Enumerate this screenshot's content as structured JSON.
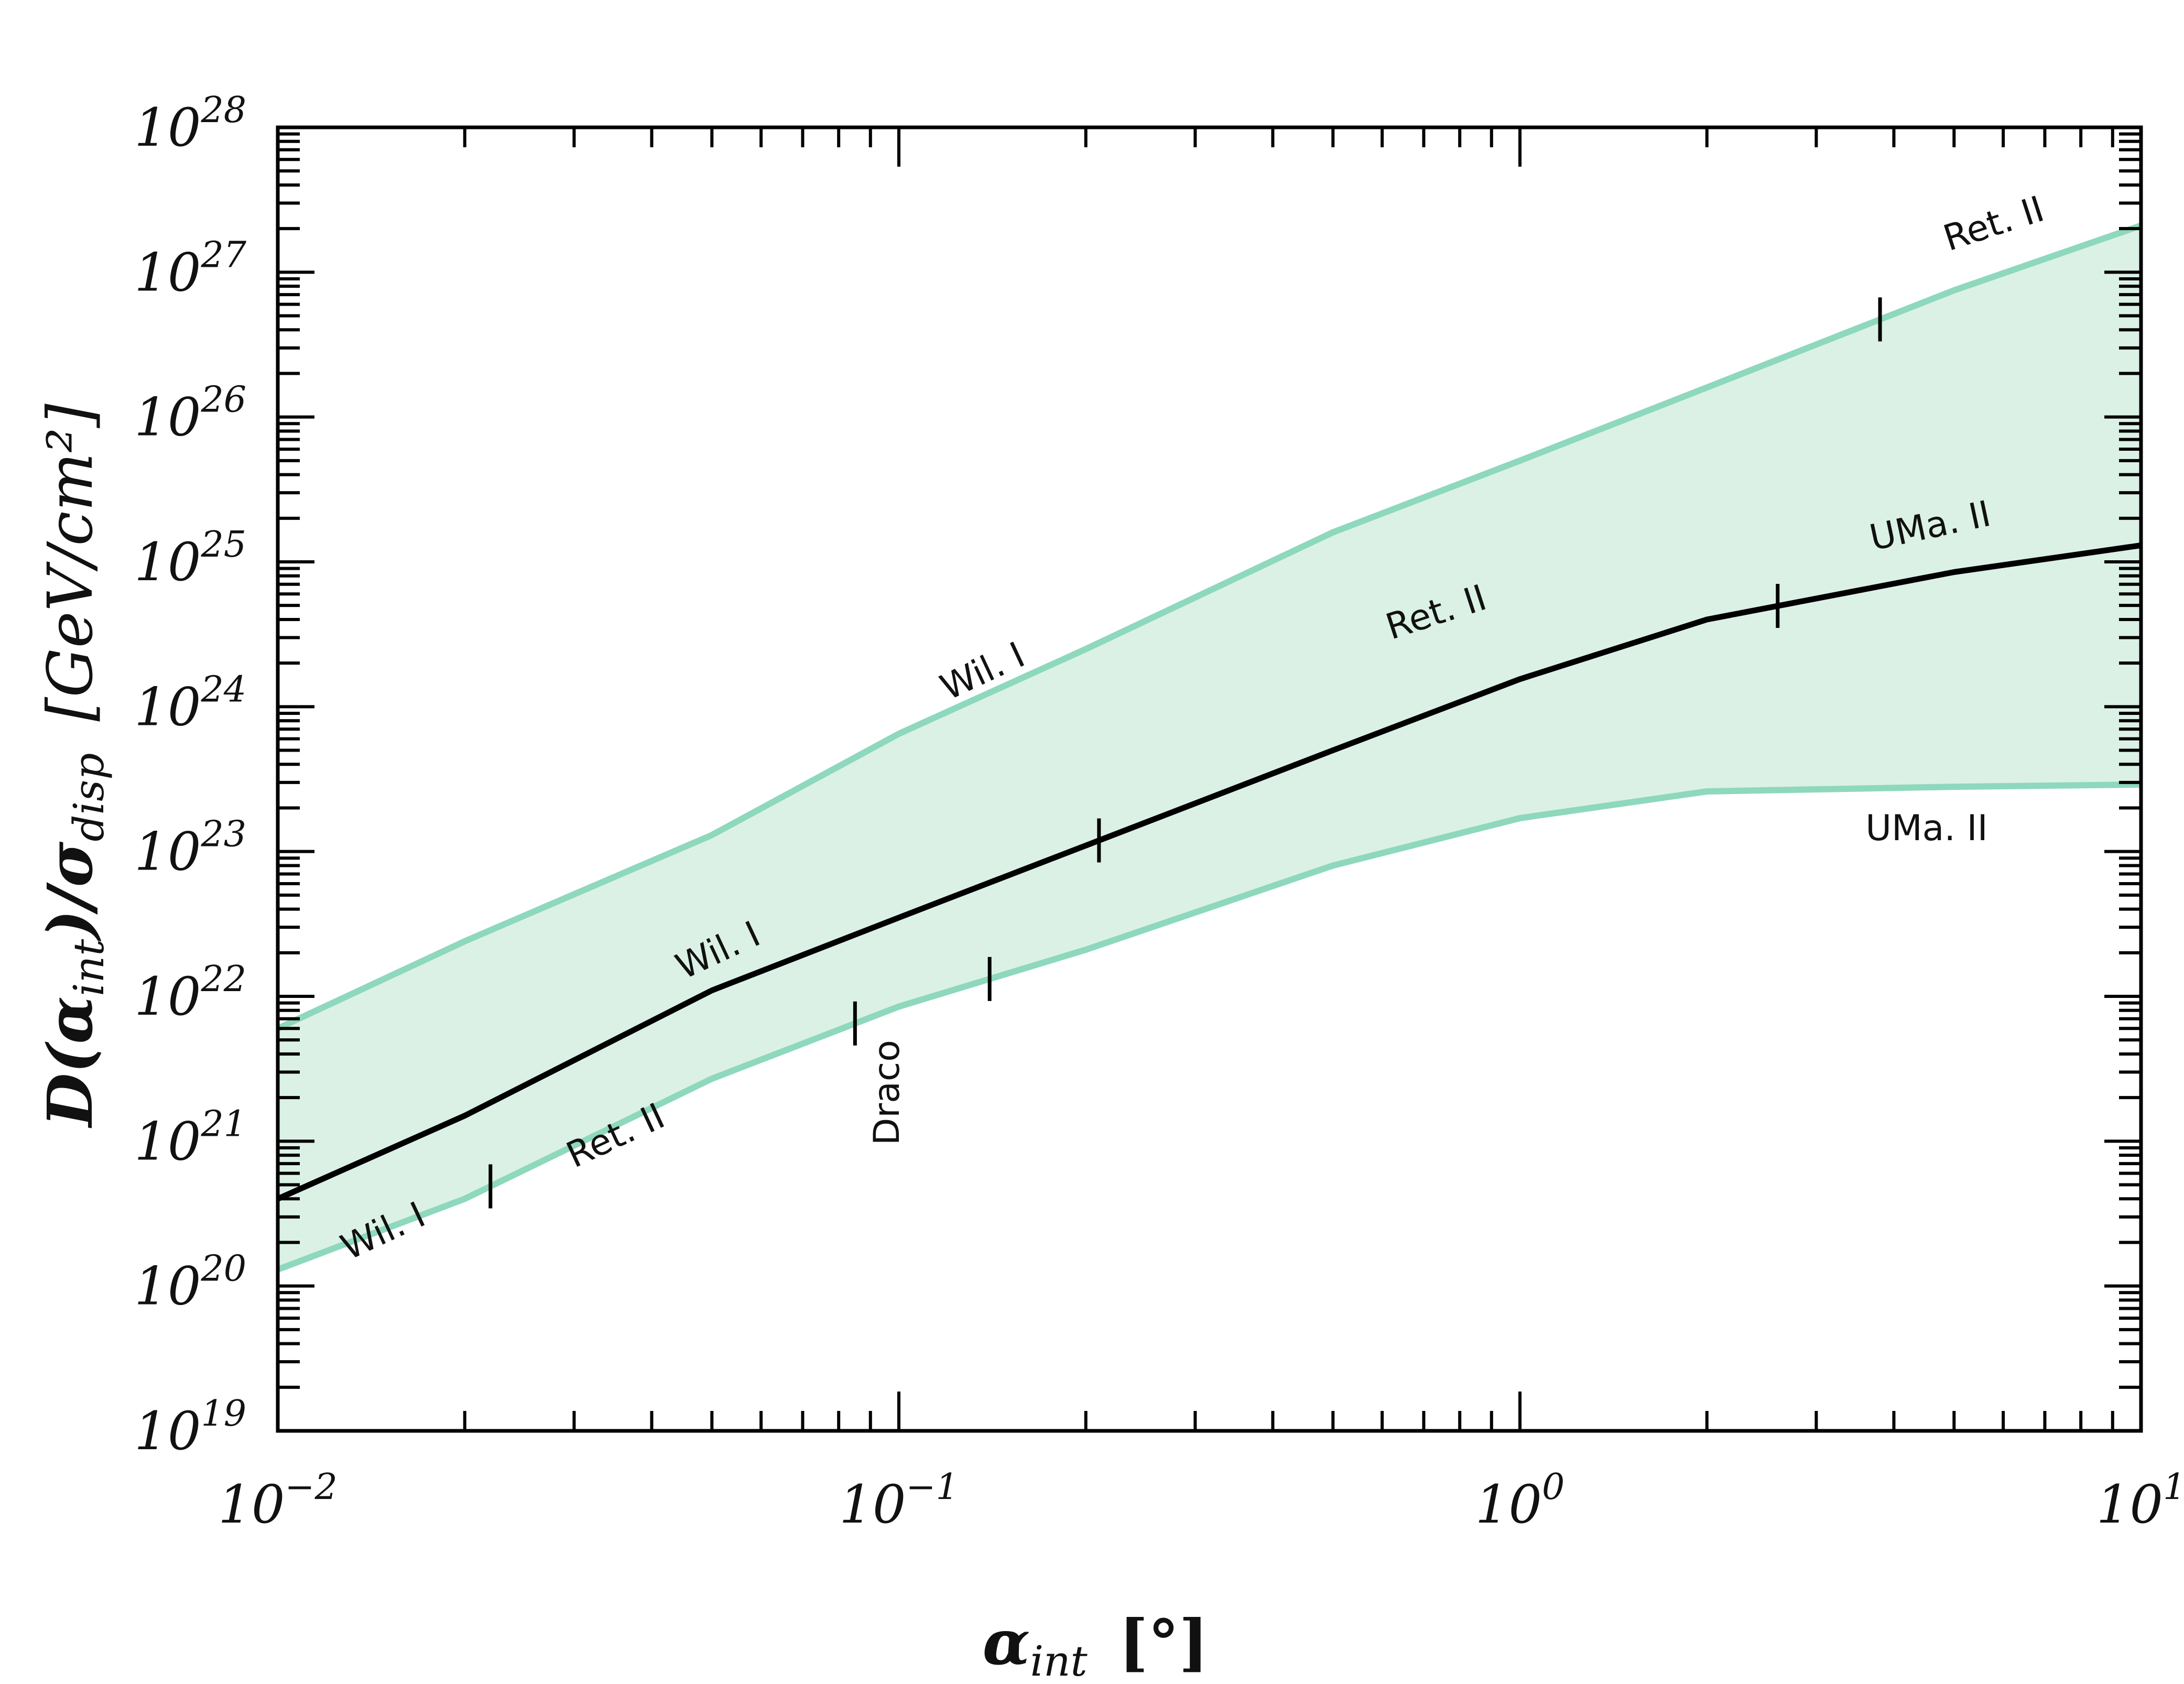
{
  "chart_data": {
    "type": "area",
    "x_scale": "log",
    "y_scale": "log",
    "xlim": [
      0.01,
      10
    ],
    "ylim": [
      1e+19,
      1e+28
    ],
    "grid": false,
    "xlabel": {
      "main": "α",
      "sub": "int",
      "unit": "[°]"
    },
    "ylabel": {
      "main": "D(α",
      "main_sub": "int",
      "mid": ")/σ",
      "sub": "disp",
      "unit": "[GeV/cm²]"
    },
    "x_ticks": [
      {
        "value": 0.01,
        "base": "10",
        "exp": "−2"
      },
      {
        "value": 0.1,
        "base": "10",
        "exp": "−1"
      },
      {
        "value": 1,
        "base": "10",
        "exp": "0"
      },
      {
        "value": 10,
        "base": "10",
        "exp": "1"
      }
    ],
    "y_ticks": [
      {
        "value": 1e+19,
        "base": "10",
        "exp": "19"
      },
      {
        "value": 1e+20,
        "base": "10",
        "exp": "20"
      },
      {
        "value": 1e+21,
        "base": "10",
        "exp": "21"
      },
      {
        "value": 1e+22,
        "base": "10",
        "exp": "22"
      },
      {
        "value": 1e+23,
        "base": "10",
        "exp": "23"
      },
      {
        "value": 1e+24,
        "base": "10",
        "exp": "24"
      },
      {
        "value": 1e+25,
        "base": "10",
        "exp": "25"
      },
      {
        "value": 1e+26,
        "base": "10",
        "exp": "26"
      },
      {
        "value": 1e+27,
        "base": "10",
        "exp": "27"
      },
      {
        "value": 1e+28,
        "base": "10",
        "exp": "28"
      }
    ],
    "colors": {
      "band_fill": "#dbf1e6",
      "band_edge": "#8ed8bd",
      "median": "#000000"
    },
    "series": [
      {
        "role": "upper",
        "points": [
          [
            0.01,
            6e+21
          ],
          [
            0.02,
            2.4e+22
          ],
          [
            0.05,
            1.3e+23
          ],
          [
            0.1,
            6.5e+23
          ],
          [
            0.2,
            2.5e+24
          ],
          [
            0.5,
            1.6e+25
          ],
          [
            1,
            5e+25
          ],
          [
            2,
            1.6e+26
          ],
          [
            5,
            7.5e+26
          ],
          [
            10,
            2.1e+27
          ]
        ]
      },
      {
        "role": "median",
        "points": [
          [
            0.01,
            4e+20
          ],
          [
            0.02,
            1.5e+21
          ],
          [
            0.05,
            1.1e+22
          ],
          [
            0.1,
            3.5e+22
          ],
          [
            0.2,
            1.1e+23
          ],
          [
            0.5,
            5e+23
          ],
          [
            1,
            1.55e+24
          ],
          [
            2,
            4e+24
          ],
          [
            5,
            8.5e+24
          ],
          [
            10,
            1.3e+25
          ]
        ]
      },
      {
        "role": "lower",
        "points": [
          [
            0.01,
            1.3e+20
          ],
          [
            0.02,
            4e+20
          ],
          [
            0.05,
            2.7e+21
          ],
          [
            0.1,
            8.5e+21
          ],
          [
            0.2,
            2.1e+22
          ],
          [
            0.5,
            8e+22
          ],
          [
            1,
            1.7e+23
          ],
          [
            2,
            2.6e+23
          ],
          [
            5,
            2.8e+23
          ],
          [
            10,
            2.9e+23
          ]
        ]
      }
    ],
    "transition_markers": [
      {
        "series": "upper",
        "x": 3.8
      },
      {
        "series": "median",
        "x": 0.21
      },
      {
        "series": "median",
        "x": 2.6
      },
      {
        "series": "lower",
        "x": 0.022
      },
      {
        "series": "lower",
        "x": 0.085
      },
      {
        "series": "lower",
        "x": 0.14
      }
    ],
    "annotations": [
      {
        "text": "Wil. I",
        "x": 0.013,
        "y": 1.5e+20,
        "rotate": -25,
        "anchor": "start"
      },
      {
        "text": "Ret. II",
        "x": 0.03,
        "y": 6.5e+20,
        "rotate": -25,
        "anchor": "start"
      },
      {
        "text": "Draco",
        "x": 0.1,
        "y": 5e+21,
        "rotate": -90,
        "anchor": "end"
      },
      {
        "text": "Wil. I",
        "x": 0.045,
        "y": 1.3e+22,
        "rotate": -25,
        "anchor": "start"
      },
      {
        "text": "Ret. II",
        "x": 0.62,
        "y": 2.9e+24,
        "rotate": -18,
        "anchor": "start"
      },
      {
        "text": "UMa. II",
        "x": 3.7,
        "y": 1.2e+25,
        "rotate": -12,
        "anchor": "start"
      },
      {
        "text": "UMa. II",
        "x": 3.6,
        "y": 1.2e+23,
        "rotate": 0,
        "anchor": "start"
      },
      {
        "text": "Wil. I",
        "x": 0.12,
        "y": 1.1e+24,
        "rotate": -25,
        "anchor": "start"
      },
      {
        "text": "Ret. II",
        "x": 4.9,
        "y": 1.4e+27,
        "rotate": -18,
        "anchor": "start"
      }
    ]
  }
}
